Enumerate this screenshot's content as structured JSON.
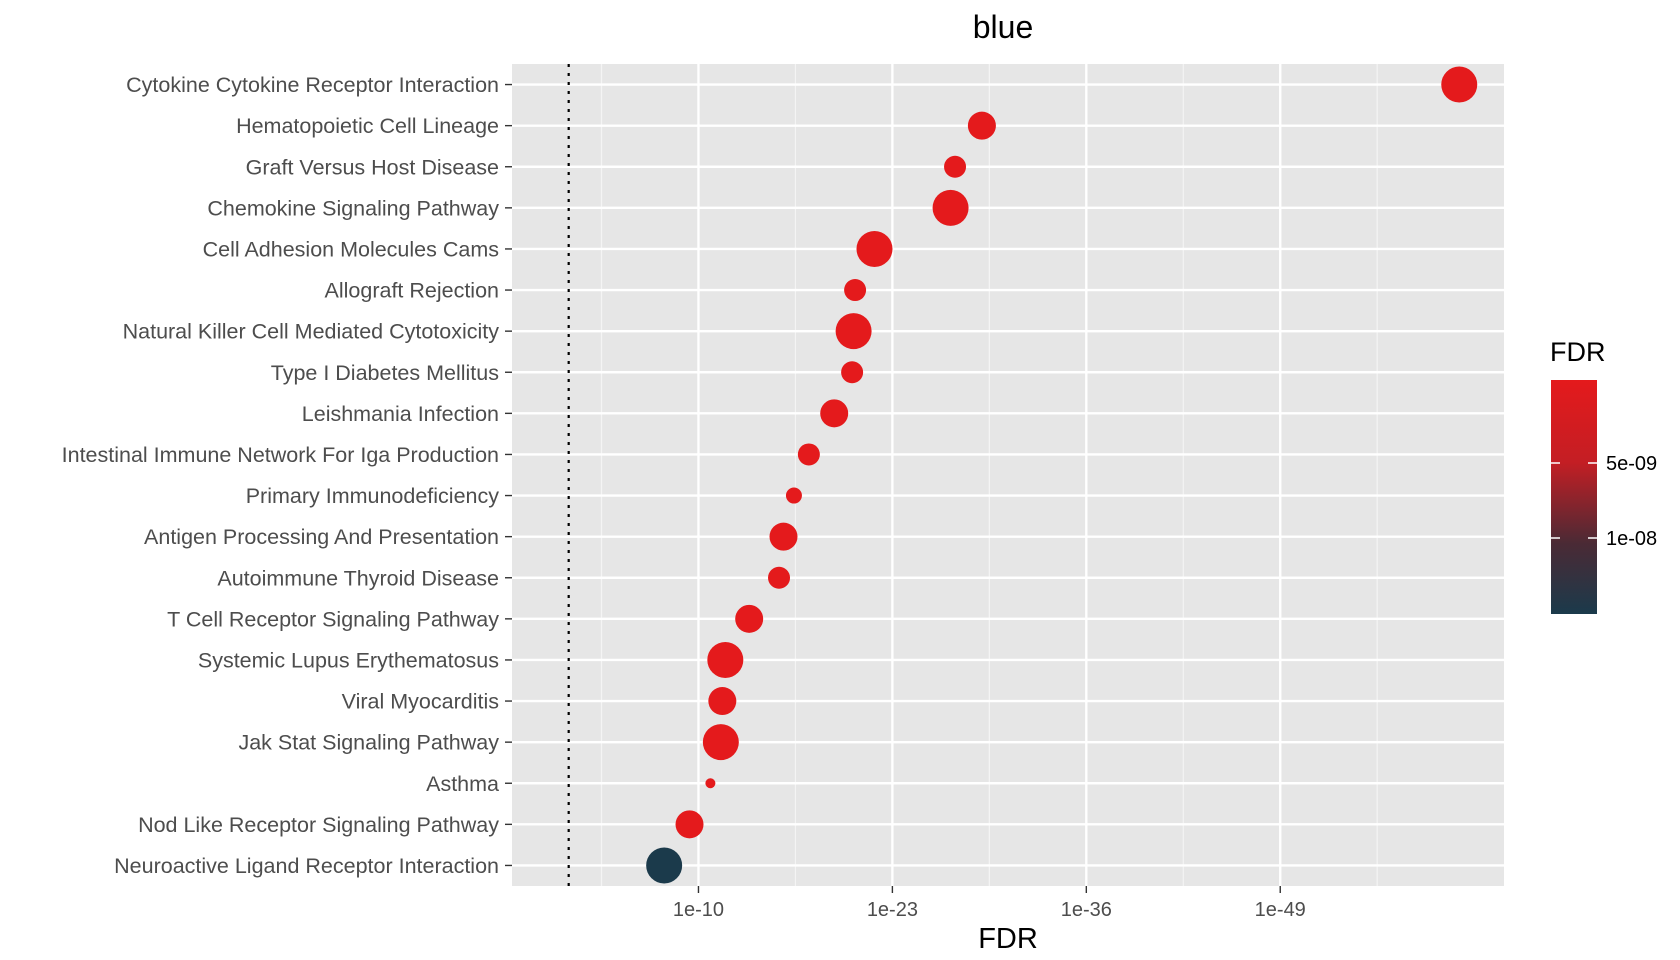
{
  "chart_data": {
    "type": "scatter",
    "title": "blue",
    "xlabel": "FDR",
    "ylabel": "",
    "x_scale": "-log10 (reversed: smaller FDR to the right)",
    "xlim_neglog10": [
      -2.5,
      64
    ],
    "x_ticks": [
      {
        "label": "1e-10",
        "neglog10": 10
      },
      {
        "label": "1e-23",
        "neglog10": 23
      },
      {
        "label": "1e-36",
        "neglog10": 36
      },
      {
        "label": "1e-49",
        "neglog10": 49
      }
    ],
    "reference_line_neglog10": 1.3,
    "grid": true,
    "legend": {
      "title": "FDR",
      "position": "right",
      "type": "colorbar",
      "low_color": "#e41a1c",
      "high_color": "#1b3a4b",
      "labels": [
        "5e-09",
        "1e-08"
      ]
    },
    "points": [
      {
        "term": "Cytokine Cytokine Receptor Interaction",
        "fdr": "1e-61",
        "neglog10": 61,
        "size_rank": 4,
        "color": "#e41a1c"
      },
      {
        "term": "Hematopoietic Cell Lineage",
        "fdr": "1e-29",
        "neglog10": 29,
        "size_rank": 3,
        "color": "#e41a1c"
      },
      {
        "term": "Graft Versus Host Disease",
        "fdr": "1e-27",
        "neglog10": 27.2,
        "size_rank": 2,
        "color": "#e41a1c"
      },
      {
        "term": "Chemokine Signaling Pathway",
        "fdr": "1e-27",
        "neglog10": 26.9,
        "size_rank": 4,
        "color": "#e41a1c"
      },
      {
        "term": "Cell Adhesion Molecules Cams",
        "fdr": "1e-22",
        "neglog10": 21.8,
        "size_rank": 4,
        "color": "#e41a1c"
      },
      {
        "term": "Allograft Rejection",
        "fdr": "1e-21",
        "neglog10": 20.5,
        "size_rank": 2,
        "color": "#e41a1c"
      },
      {
        "term": "Natural Killer Cell Mediated Cytotoxicity",
        "fdr": "1e-20",
        "neglog10": 20.4,
        "size_rank": 4,
        "color": "#e41a1c"
      },
      {
        "term": "Type I Diabetes Mellitus",
        "fdr": "1e-20",
        "neglog10": 20.3,
        "size_rank": 2,
        "color": "#e41a1c"
      },
      {
        "term": "Leishmania Infection",
        "fdr": "1e-19",
        "neglog10": 19.1,
        "size_rank": 3,
        "color": "#e41a1c"
      },
      {
        "term": "Intestinal Immune Network For Iga Production",
        "fdr": "1e-17",
        "neglog10": 17.4,
        "size_rank": 2,
        "color": "#e41a1c"
      },
      {
        "term": "Primary Immunodeficiency",
        "fdr": "1e-16",
        "neglog10": 16.4,
        "size_rank": 1,
        "color": "#e41a1c"
      },
      {
        "term": "Antigen Processing And Presentation",
        "fdr": "1e-16",
        "neglog10": 15.7,
        "size_rank": 3,
        "color": "#e41a1c"
      },
      {
        "term": "Autoimmune Thyroid Disease",
        "fdr": "1e-15",
        "neglog10": 15.4,
        "size_rank": 2,
        "color": "#e41a1c"
      },
      {
        "term": "T Cell Receptor Signaling Pathway",
        "fdr": "1e-13",
        "neglog10": 13.4,
        "size_rank": 3,
        "color": "#e41a1c"
      },
      {
        "term": "Systemic Lupus Erythematosus",
        "fdr": "1e-12",
        "neglog10": 11.8,
        "size_rank": 4,
        "color": "#e41a1c"
      },
      {
        "term": "Viral Myocarditis",
        "fdr": "1e-12",
        "neglog10": 11.6,
        "size_rank": 3,
        "color": "#e41a1c"
      },
      {
        "term": "Jak Stat Signaling Pathway",
        "fdr": "1e-11",
        "neglog10": 11.5,
        "size_rank": 4,
        "color": "#e41a1c"
      },
      {
        "term": "Asthma",
        "fdr": "1e-11",
        "neglog10": 10.8,
        "size_rank": 0,
        "color": "#e41a1c"
      },
      {
        "term": "Nod Like Receptor Signaling Pathway",
        "fdr": "1e-09",
        "neglog10": 9.4,
        "size_rank": 3,
        "color": "#e41a1c"
      },
      {
        "term": "Neuroactive Ligand Receptor Interaction",
        "fdr": "1e-08",
        "neglog10": 7.7,
        "size_rank": 4,
        "color": "#1b3a4b"
      }
    ]
  }
}
